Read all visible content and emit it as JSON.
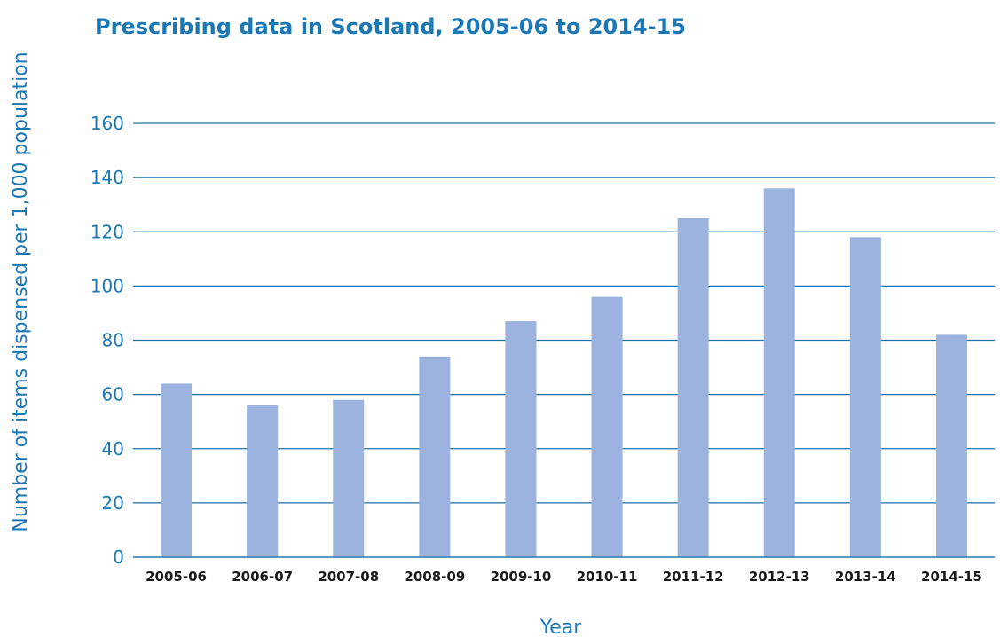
{
  "chart_data": {
    "type": "bar",
    "title": "Prescribing data in Scotland, 2005-06 to 2014-15",
    "xlabel": "Year",
    "ylabel": "Number of items dispensed per 1,000 population",
    "categories": [
      "2005-06",
      "2006-07",
      "2007-08",
      "2008-09",
      "2009-10",
      "2010-11",
      "2011-12",
      "2012-13",
      "2013-14",
      "2014-15"
    ],
    "values": [
      64,
      56,
      58,
      74,
      87,
      96,
      125,
      136,
      118,
      82
    ],
    "ylim": [
      0,
      160
    ],
    "yticks": [
      0,
      20,
      40,
      60,
      80,
      100,
      120,
      140,
      160
    ],
    "yticks_labels": [
      "0",
      "20",
      "40",
      "60",
      "80",
      "100",
      "120",
      "140",
      "160"
    ],
    "grid": true,
    "legend": "none",
    "colors": {
      "bar": "#9bb3de",
      "grid": "#1f6fa8",
      "text": "#1b78b4",
      "tick_label": "#1a1a1a"
    }
  }
}
